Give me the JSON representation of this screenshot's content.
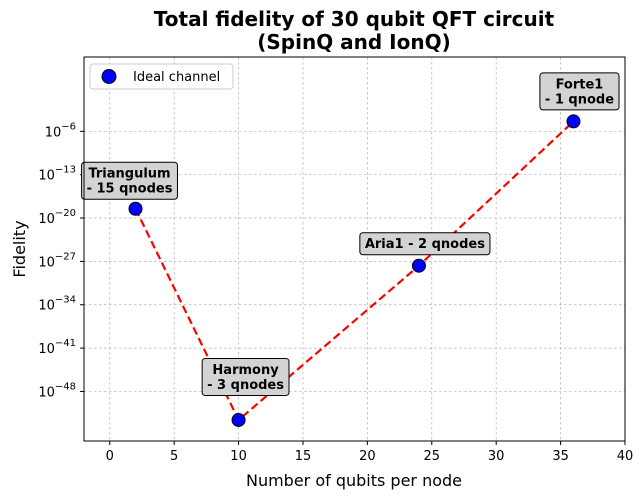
{
  "chart_data": {
    "type": "scatter",
    "title": [
      "Total fidelity of 30 qubit QFT circuit",
      "(SpinQ and IonQ)"
    ],
    "xlabel": "Number of qubits per node",
    "ylabel": "Fidelity",
    "xlim": [
      -2,
      40
    ],
    "ylim_log10": [
      -56,
      6
    ],
    "x_ticks": [
      0,
      5,
      10,
      15,
      20,
      25,
      30,
      35,
      40
    ],
    "y_ticks_log10": [
      -48,
      -41,
      -34,
      -27,
      -20,
      -13,
      -6
    ],
    "y_tick_base": "10",
    "grid": true,
    "legend": {
      "position": "top-left",
      "entries": [
        "Ideal channel"
      ]
    },
    "marker_color": "#0000ff",
    "line_color": "#ff0000",
    "series": [
      {
        "name": "Ideal channel",
        "x": [
          2,
          10,
          24,
          36
        ],
        "y_log10": [
          -18.5,
          -52.6,
          -27.7,
          -4.4
        ],
        "labels": [
          [
            "Triangulum",
            "- 15 qnodes"
          ],
          [
            "Harmony",
            "- 3 qnodes"
          ],
          [
            "Aria1 - 2 qnodes"
          ],
          [
            "Forte1",
            "- 1 qnode"
          ]
        ]
      }
    ]
  }
}
